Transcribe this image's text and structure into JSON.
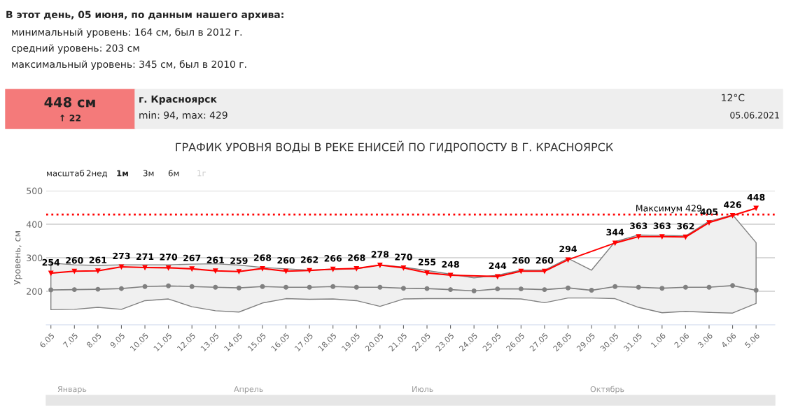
{
  "chart_data": {
    "type": "line",
    "title": "ГРАФИК УРОВНЯ ВОДЫ В РЕКЕ ЕНИСЕЙ ПО ГИДРОПОСТУ В Г. КРАСНОЯРСК",
    "ylabel": "Уровень, см",
    "categories": [
      "6.05",
      "7.05",
      "8.05",
      "9.05",
      "10.05",
      "11.05",
      "12.05",
      "13.05",
      "14.05",
      "15.05",
      "16.05",
      "17.05",
      "18.05",
      "19.05",
      "20.05",
      "21.05",
      "22.05",
      "23.05",
      "24.05",
      "25.05",
      "26.05",
      "27.05",
      "28.05",
      "29.05",
      "30.05",
      "31.05",
      "1.06",
      "2.06",
      "3.06",
      "4.06",
      "5.06"
    ],
    "series": [
      {
        "color": "#808080",
        "marker": "circle",
        "values": [
          204,
          205,
          206,
          208,
          214,
          216,
          214,
          212,
          210,
          214,
          212,
          212,
          214,
          212,
          212,
          209,
          208,
          205,
          201,
          207,
          207,
          205,
          210,
          203,
          214,
          212,
          209,
          212,
          212,
          217,
          203
        ],
        "lower": [
          145,
          146,
          152,
          146,
          172,
          177,
          154,
          142,
          138,
          165,
          178,
          176,
          177,
          172,
          155,
          177,
          178,
          178,
          178,
          178,
          177,
          166,
          180,
          180,
          178,
          152,
          136,
          140,
          137,
          135,
          164
        ],
        "upper": [
          284,
          279,
          277,
          279,
          279,
          279,
          281,
          282,
          278,
          271,
          267,
          263,
          265,
          267,
          279,
          272,
          262,
          251,
          240,
          248,
          263,
          263,
          298,
          263,
          348,
          368,
          367,
          365,
          409,
          428,
          345
        ]
      },
      {
        "color": "#ff0000",
        "marker": "triangle",
        "values": [
          254,
          260,
          261,
          273,
          271,
          270,
          267,
          261,
          259,
          268,
          260,
          262,
          266,
          268,
          278,
          270,
          255,
          248,
          null,
          244,
          260,
          260,
          294,
          null,
          344,
          363,
          363,
          362,
          405,
          426,
          448
        ],
        "value_labels": [
          "254",
          "260",
          "261",
          "273",
          "271",
          "270",
          "267",
          "261",
          "259",
          "268",
          "260",
          "262",
          "266",
          "268",
          "278",
          "270",
          "255",
          "248",
          null,
          "244",
          "260",
          "260",
          "294",
          null,
          "344",
          "363",
          "363",
          "362",
          "405",
          "426",
          "448"
        ]
      }
    ],
    "ylim": [
      100,
      500
    ],
    "yticks": [
      200,
      300,
      400,
      500
    ],
    "grid": "y",
    "legend": false,
    "ref_lines": [
      {
        "axis": "y",
        "value": 429,
        "label": "Максимум 429",
        "color": "#ff0000",
        "line_style": "dotted"
      }
    ],
    "annotations": [
      "В этот день, 05 июня, по данным нашего архива:",
      "минимальный уровень: 164 см, был в 2012 г.",
      "средний уровень: 203 см",
      "максимальный уровень: 345 см, был в 2010 г.",
      "448 см",
      "↑ 22",
      "г. Красноярск",
      "min: 94, max: 429",
      "12°C",
      "05.06.2021",
      "масштаб",
      "2нед",
      "1м",
      "3м",
      "6м",
      "1г",
      "Январь",
      "Апрель",
      "Июль",
      "Октябрь"
    ]
  }
}
